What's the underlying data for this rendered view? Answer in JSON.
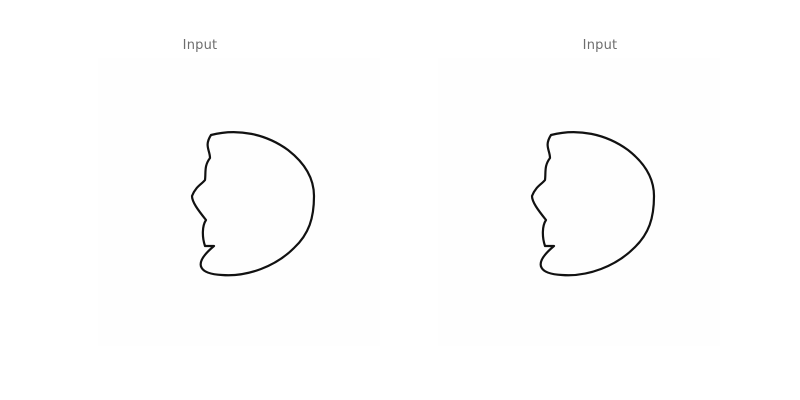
{
  "panels": [
    {
      "title": "Input"
    },
    {
      "title": "Input"
    }
  ]
}
